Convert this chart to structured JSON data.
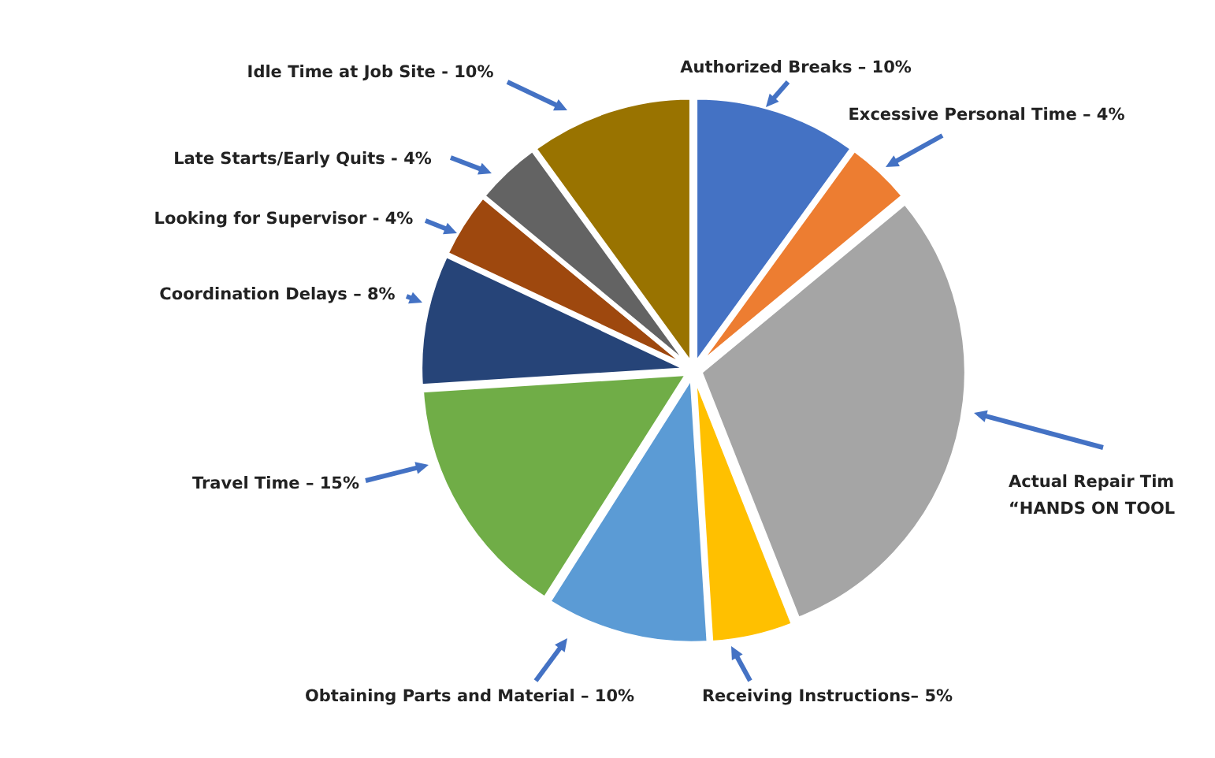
{
  "chart_data": {
    "type": "pie",
    "categories": [
      "Authorized Breaks – 10%",
      "Excessive Personal Time – 4%",
      "Actual Repair Tim\n“HANDS ON TOOL",
      "Receiving Instructions– 5%",
      "Obtaining Parts and Material – 10%",
      "Travel Time – 15%",
      "Coordination Delays – 8%",
      "Looking for Supervisor - 4%",
      "Late Starts/Early Quits - 4%",
      "Idle Time at Job Site - 10%"
    ],
    "values": [
      10,
      4,
      30,
      5,
      10,
      15,
      8,
      4,
      4,
      10
    ],
    "colors": [
      "#4472c4",
      "#ed7d31",
      "#a5a5a5",
      "#ffc000",
      "#5b9bd5",
      "#70ad47",
      "#264478",
      "#9e480e",
      "#636363",
      "#997300"
    ]
  }
}
